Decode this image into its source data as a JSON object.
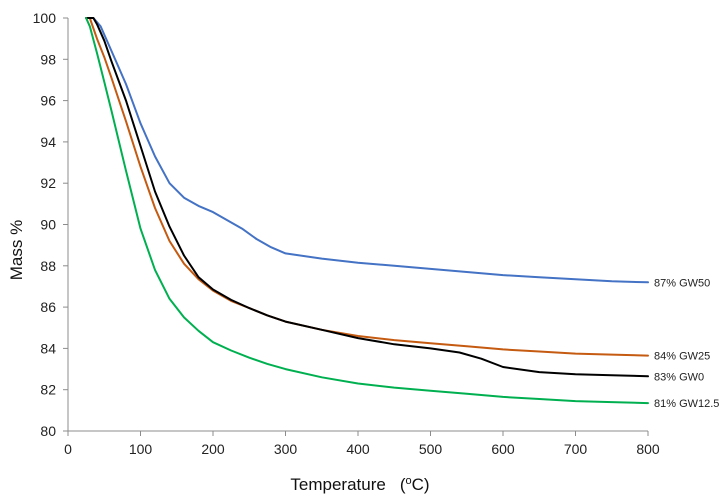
{
  "chart_data": {
    "type": "line",
    "title": "",
    "xlabel": "Temperature",
    "xlabel_unit_prefix": "o",
    "xlabel_unit_suffix": "C",
    "ylabel": "Mass %",
    "xlim": [
      0,
      800
    ],
    "ylim": [
      80,
      100
    ],
    "x_ticks": [
      0,
      100,
      200,
      300,
      400,
      500,
      600,
      700,
      800
    ],
    "y_ticks": [
      80,
      82,
      84,
      86,
      88,
      90,
      92,
      94,
      96,
      98,
      100
    ],
    "grid": false,
    "series": [
      {
        "name": "87% GW50",
        "label": "87% GW50",
        "color": "#4472c4",
        "x": [
          25,
          35,
          45,
          60,
          80,
          100,
          120,
          140,
          160,
          180,
          200,
          220,
          240,
          260,
          280,
          300,
          350,
          400,
          450,
          500,
          550,
          600,
          650,
          700,
          750,
          800
        ],
        "y": [
          100,
          100,
          99.6,
          98.4,
          96.8,
          94.9,
          93.3,
          92.0,
          91.3,
          90.9,
          90.6,
          90.2,
          89.8,
          89.3,
          88.9,
          88.6,
          88.35,
          88.15,
          88.0,
          87.85,
          87.7,
          87.55,
          87.45,
          87.35,
          87.25,
          87.2
        ]
      },
      {
        "name": "84% GW25",
        "label": "84% GW25",
        "color": "#c55a11",
        "x": [
          25,
          30,
          40,
          50,
          60,
          80,
          100,
          120,
          140,
          160,
          180,
          200,
          225,
          250,
          275,
          300,
          350,
          400,
          450,
          500,
          550,
          600,
          650,
          700,
          750,
          800
        ],
        "y": [
          100,
          100,
          99.0,
          98.1,
          97.1,
          95.0,
          92.8,
          90.8,
          89.2,
          88.1,
          87.35,
          86.8,
          86.3,
          85.95,
          85.6,
          85.3,
          84.9,
          84.6,
          84.4,
          84.25,
          84.1,
          83.95,
          83.85,
          83.75,
          83.7,
          83.65
        ]
      },
      {
        "name": "83% GW0",
        "label": "83% GW0",
        "color": "#000000",
        "x": [
          25,
          35,
          40,
          50,
          60,
          80,
          100,
          120,
          140,
          160,
          180,
          200,
          225,
          250,
          275,
          300,
          350,
          400,
          450,
          500,
          540,
          570,
          600,
          650,
          700,
          750,
          800
        ],
        "y": [
          100,
          100,
          99.7,
          98.9,
          97.9,
          96.0,
          93.8,
          91.6,
          89.9,
          88.5,
          87.45,
          86.85,
          86.35,
          85.95,
          85.6,
          85.3,
          84.9,
          84.5,
          84.2,
          84.0,
          83.8,
          83.5,
          83.1,
          82.85,
          82.75,
          82.7,
          82.65
        ]
      },
      {
        "name": "81% GW12.5",
        "label": "81% GW12.5",
        "color": "#00b050",
        "x": [
          25,
          30,
          40,
          50,
          60,
          80,
          100,
          120,
          140,
          160,
          180,
          200,
          225,
          250,
          275,
          300,
          350,
          400,
          450,
          500,
          550,
          600,
          650,
          700,
          750,
          800
        ],
        "y": [
          100,
          99.6,
          98.3,
          96.9,
          95.5,
          92.6,
          89.8,
          87.8,
          86.4,
          85.5,
          84.85,
          84.3,
          83.9,
          83.55,
          83.25,
          83.0,
          82.6,
          82.3,
          82.1,
          81.95,
          81.8,
          81.65,
          81.55,
          81.45,
          81.4,
          81.35
        ]
      }
    ]
  }
}
